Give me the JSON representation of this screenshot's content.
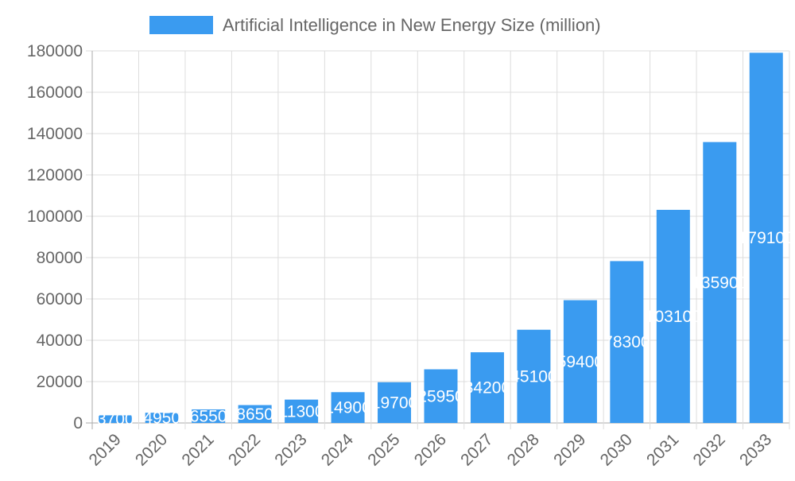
{
  "chart_data": {
    "type": "bar",
    "title": "",
    "xlabel": "",
    "ylabel": "",
    "categories": [
      "2019",
      "2020",
      "2021",
      "2022",
      "2023",
      "2024",
      "2025",
      "2026",
      "2027",
      "2028",
      "2029",
      "2030",
      "2031",
      "2032",
      "2033"
    ],
    "series": [
      {
        "name": "Artificial Intelligence in New Energy Size (million)",
        "values": [
          3700,
          4950,
          6550,
          8650,
          11300,
          14900,
          19700,
          25950,
          34200,
          45100,
          59400,
          78300,
          103100,
          135900,
          179100
        ],
        "color": "#3a9bf0"
      }
    ],
    "ylim": [
      0,
      180000
    ],
    "yticks": [
      "0",
      "20000",
      "40000",
      "60000",
      "80000",
      "100000",
      "120000",
      "140000",
      "160000",
      "180000"
    ],
    "grid": true,
    "legend": "top",
    "data_labels": true
  }
}
